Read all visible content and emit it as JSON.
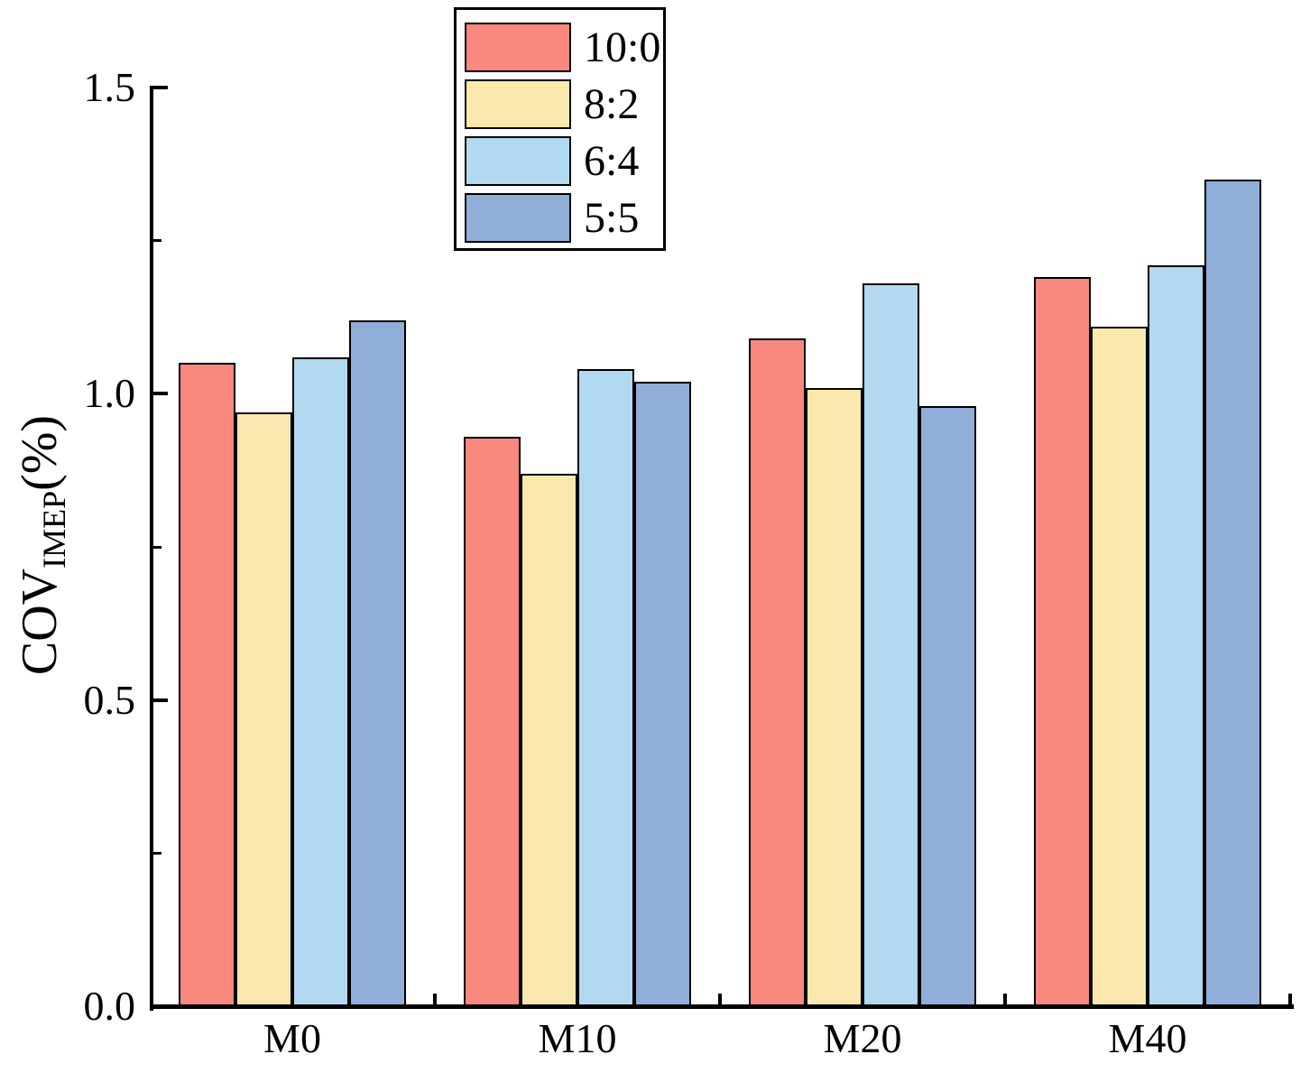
{
  "chart_data": {
    "type": "bar",
    "title": "",
    "categories": [
      "M0",
      "M10",
      "M20",
      "M40"
    ],
    "series": [
      {
        "name": "10:0",
        "color": "#F9887F",
        "values": [
          1.05,
          0.93,
          1.09,
          1.19
        ]
      },
      {
        "name": "8:2",
        "color": "#FBE8AF",
        "values": [
          0.97,
          0.87,
          1.01,
          1.11
        ]
      },
      {
        "name": "6:4",
        "color": "#B2D9F0",
        "values": [
          1.06,
          1.04,
          1.18,
          1.21
        ]
      },
      {
        "name": "5:5",
        "color": "#90AED8",
        "values": [
          1.12,
          1.02,
          0.98,
          1.35
        ]
      }
    ],
    "xlabel": "",
    "ylabel_main": "COV",
    "ylabel_sub": "IMEP",
    "ylabel_unit": "(%)",
    "ylim": [
      0,
      1.5
    ],
    "yticks": [
      0.0,
      0.5,
      1.0,
      1.5
    ],
    "ytick_labels": [
      "0.0",
      "0.5",
      "1.0",
      "1.5"
    ],
    "minor_yticks": [
      0.25,
      0.75,
      1.25
    ],
    "legend_position": "top-center",
    "grid": false,
    "bar_outline_color": "#000000",
    "axis_color": "#000000"
  }
}
